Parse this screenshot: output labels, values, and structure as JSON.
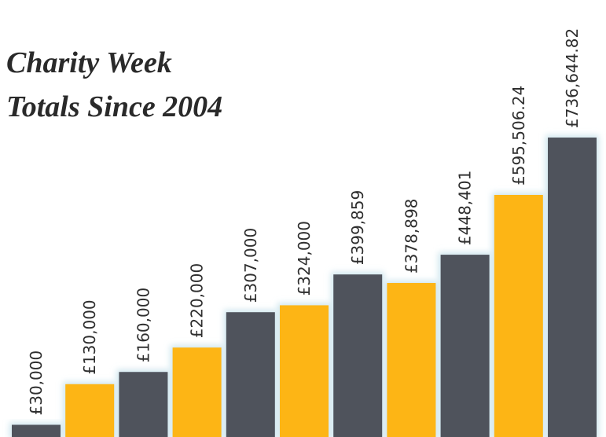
{
  "chart_data": {
    "type": "bar",
    "title": [
      "Charity Week",
      "Totals Since 2004"
    ],
    "values": [
      30000,
      130000,
      160000,
      220000,
      307000,
      324000,
      399859,
      378898,
      448401,
      595506.24,
      736644.82
    ],
    "value_labels": [
      "£30,000",
      "£130,000",
      "£160,000",
      "£220,000",
      "£307,000",
      "£324,000",
      "£399,859",
      "£378,898",
      "£448,401",
      "£595,506.24",
      "£736,644.82"
    ],
    "colors": [
      "#4f535c",
      "#fdb515",
      "#4f535c",
      "#fdb515",
      "#4f535c",
      "#fdb515",
      "#4f535c",
      "#fdb515",
      "#4f535c",
      "#fdb515",
      "#4f535c"
    ]
  }
}
